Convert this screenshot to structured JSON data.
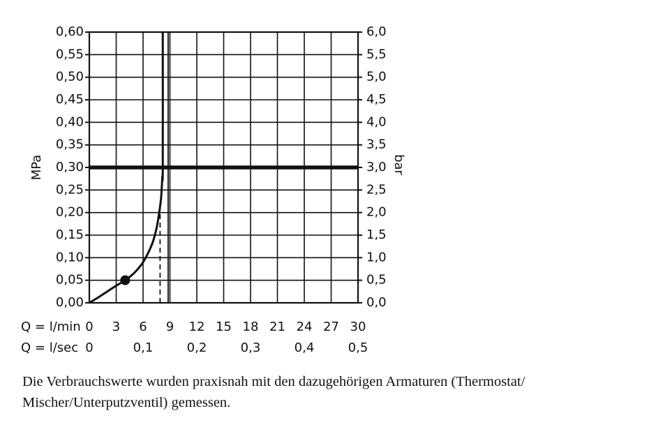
{
  "chart_data": {
    "type": "line",
    "x_unit_label": "Q = l/min",
    "x_secondary_label": "Q = l/sec",
    "y_left_label": "MPa",
    "y_right_label": "bar",
    "x_ticks": [
      "0",
      "3",
      "6",
      "9",
      "12",
      "15",
      "18",
      "21",
      "24",
      "27",
      "30"
    ],
    "x_secondary_ticks": [
      {
        "x": 0,
        "label": "0"
      },
      {
        "x": 6,
        "label": "0,1"
      },
      {
        "x": 12,
        "label": "0,2"
      },
      {
        "x": 18,
        "label": "0,3"
      },
      {
        "x": 24,
        "label": "0,4"
      },
      {
        "x": 30,
        "label": "0,5"
      }
    ],
    "y_left_ticks": [
      "0,00",
      "0,05",
      "0,10",
      "0,15",
      "0,20",
      "0,25",
      "0,30",
      "0,35",
      "0,40",
      "0,45",
      "0,50",
      "0,55",
      "0,60"
    ],
    "y_right_ticks": [
      "0,0",
      "0,5",
      "1,0",
      "1,5",
      "2,0",
      "2,5",
      "3,0",
      "3,5",
      "4,0",
      "4,5",
      "5,0",
      "5,5",
      "6,0"
    ],
    "xlim": [
      0,
      30
    ],
    "ylim": [
      0,
      0.6
    ],
    "grid": true,
    "series": [
      {
        "x": [
          0,
          1,
          2,
          3,
          4,
          5,
          6,
          7,
          7.5,
          7.8,
          8.0,
          8.1,
          8.15,
          8.2,
          8.2
        ],
        "y": [
          0,
          0.012,
          0.025,
          0.038,
          0.05,
          0.066,
          0.09,
          0.13,
          0.165,
          0.2,
          0.23,
          0.26,
          0.28,
          0.3,
          0.6
        ]
      }
    ],
    "reference_lines": [
      {
        "orientation": "horizontal",
        "y": 0.3
      },
      {
        "orientation": "vertical",
        "x": 8.8
      }
    ],
    "dashed_lines": [
      {
        "orientation": "vertical",
        "x": 7.9,
        "y_from": 0,
        "y_to": 0.22
      }
    ],
    "marker": {
      "x": 4,
      "y": 0.05
    }
  },
  "caption": {
    "line1": "Die Verbrauchswerte wurden praxisnah mit den dazugehörigen Armaturen (Thermostat/",
    "line2": "Mischer/Unterputzventil) gemessen."
  }
}
